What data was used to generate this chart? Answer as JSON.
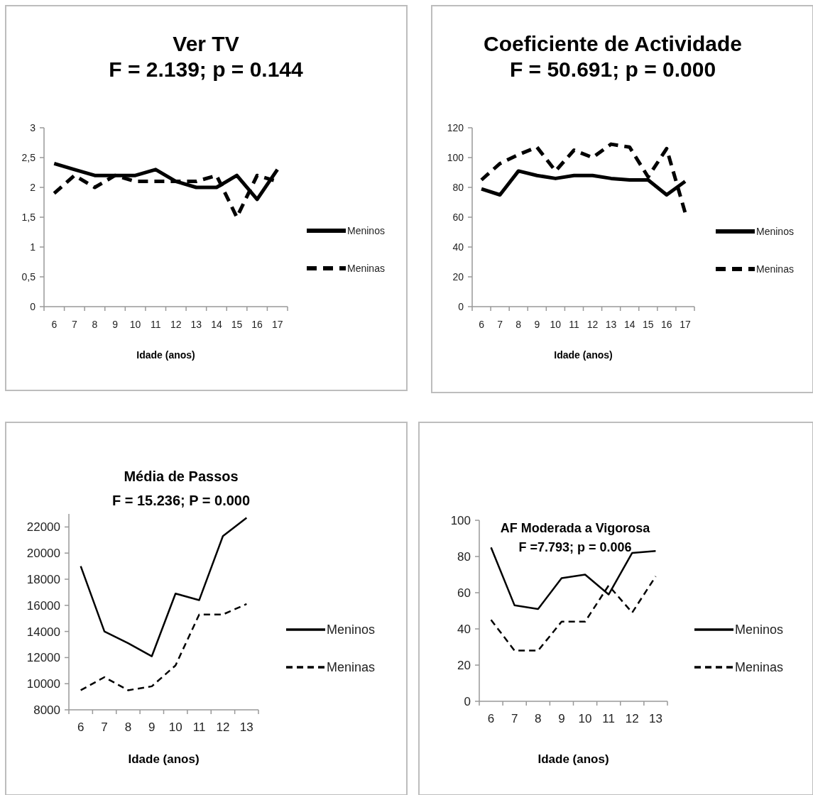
{
  "chart_data": [
    {
      "type": "line",
      "title": "Ver TV",
      "subtitle": "F = 2.139; p = 0.144",
      "xlabel": "Idade (anos)",
      "categories": [
        "6",
        "7",
        "8",
        "9",
        "10",
        "11",
        "12",
        "13",
        "14",
        "15",
        "16",
        "17"
      ],
      "ylim": [
        0,
        3
      ],
      "yticks": [
        0,
        {
          "value": 0.5,
          "label": "0,5"
        },
        1,
        {
          "value": 1.5,
          "label": "1,5"
        },
        2,
        {
          "value": 2.5,
          "label": "2,5"
        },
        3
      ],
      "grid": false,
      "legend": "right",
      "marker": "none",
      "series": [
        {
          "name": "Meninos",
          "color": "#000000",
          "line_style": "solid",
          "values": [
            2.4,
            2.3,
            2.2,
            2.2,
            2.2,
            2.3,
            2.1,
            2.0,
            2.0,
            2.2,
            1.8,
            2.3
          ]
        },
        {
          "name": "Meninas",
          "color": "#000000",
          "line_style": "dashed",
          "values": [
            1.9,
            2.2,
            2.0,
            2.2,
            2.1,
            2.1,
            2.1,
            2.1,
            2.2,
            1.5,
            2.2,
            2.1
          ]
        }
      ]
    },
    {
      "type": "line",
      "title": "Coeficiente de Actividade",
      "subtitle": "F = 50.691; p = 0.000",
      "xlabel": "Idade (anos)",
      "categories": [
        "6",
        "7",
        "8",
        "9",
        "10",
        "11",
        "12",
        "13",
        "14",
        "15",
        "16",
        "17"
      ],
      "ylim": [
        0,
        120
      ],
      "yticks": [
        0,
        20,
        40,
        60,
        80,
        100,
        120
      ],
      "grid": false,
      "legend": "right",
      "marker": "none",
      "series": [
        {
          "name": "Meninos",
          "color": "#000000",
          "line_style": "solid",
          "values": [
            79,
            75,
            91,
            88,
            86,
            88,
            88,
            86,
            85,
            85,
            75,
            84
          ]
        },
        {
          "name": "Meninas",
          "color": "#000000",
          "line_style": "dashed",
          "values": [
            85,
            96,
            102,
            107,
            91,
            105,
            100,
            109,
            107,
            87,
            106,
            63
          ]
        }
      ]
    },
    {
      "type": "line",
      "title": "Média de Passos",
      "subtitle": "F = 15.236; P = 0.000",
      "xlabel": "Idade (anos)",
      "categories": [
        "6",
        "7",
        "8",
        "9",
        "10",
        "11",
        "12",
        "13"
      ],
      "ylim": [
        8000,
        23000
      ],
      "yticks": [
        8000,
        10000,
        12000,
        14000,
        16000,
        18000,
        20000,
        22000
      ],
      "grid": false,
      "legend": "right",
      "marker": "none",
      "series": [
        {
          "name": "Meninos",
          "color": "#000000",
          "line_style": "solid",
          "values": [
            19000,
            14000,
            13100,
            12100,
            16900,
            16400,
            21300,
            22700
          ]
        },
        {
          "name": "Meninas",
          "color": "#000000",
          "line_style": "dashed",
          "values": [
            9500,
            10500,
            9500,
            9800,
            11400,
            15300,
            15300,
            16100
          ]
        }
      ]
    },
    {
      "type": "line",
      "title": "AF Moderada a Vigorosa",
      "subtitle": "F =7.793; p = 0.006",
      "xlabel": "Idade (anos)",
      "categories": [
        "6",
        "7",
        "8",
        "9",
        "10",
        "11",
        "12",
        "13"
      ],
      "ylim": [
        0,
        100
      ],
      "yticks": [
        0,
        20,
        40,
        60,
        80,
        100
      ],
      "grid": false,
      "legend": "right",
      "marker": "none",
      "series": [
        {
          "name": "Meninos",
          "color": "#000000",
          "line_style": "solid",
          "values": [
            85,
            53,
            51,
            68,
            70,
            59,
            82,
            83
          ]
        },
        {
          "name": "Meninas",
          "color": "#000000",
          "line_style": "dashed",
          "values": [
            45,
            28,
            28,
            44,
            44,
            64,
            49,
            69
          ]
        }
      ]
    }
  ]
}
